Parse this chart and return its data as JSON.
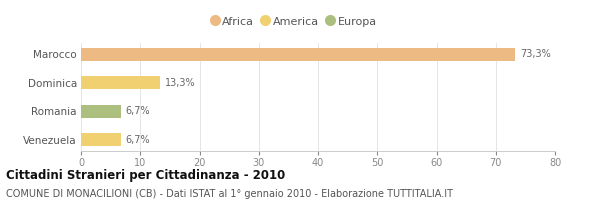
{
  "categories": [
    "Marocco",
    "Dominica",
    "Romania",
    "Venezuela"
  ],
  "values": [
    73.3,
    13.3,
    6.7,
    6.7
  ],
  "labels": [
    "73,3%",
    "13,3%",
    "6,7%",
    "6,7%"
  ],
  "colors": [
    "#EDBA84",
    "#F0D070",
    "#ADBF7E",
    "#F0D070"
  ],
  "legend_items": [
    {
      "label": "Africa",
      "color": "#EDBA84"
    },
    {
      "label": "America",
      "color": "#F0D070"
    },
    {
      "label": "Europa",
      "color": "#ADBF7E"
    }
  ],
  "xlim": [
    0,
    80
  ],
  "xticks": [
    0,
    10,
    20,
    30,
    40,
    50,
    60,
    70,
    80
  ],
  "title": "Cittadini Stranieri per Cittadinanza - 2010",
  "subtitle": "COMUNE DI MONACILIONI (CB) - Dati ISTAT al 1° gennaio 2010 - Elaborazione TUTTITALIA.IT",
  "bg_color": "#ffffff",
  "bar_height": 0.45,
  "title_fontsize": 8.5,
  "subtitle_fontsize": 7,
  "label_fontsize": 7,
  "tick_fontsize": 7,
  "ytick_fontsize": 7.5,
  "legend_fontsize": 8
}
